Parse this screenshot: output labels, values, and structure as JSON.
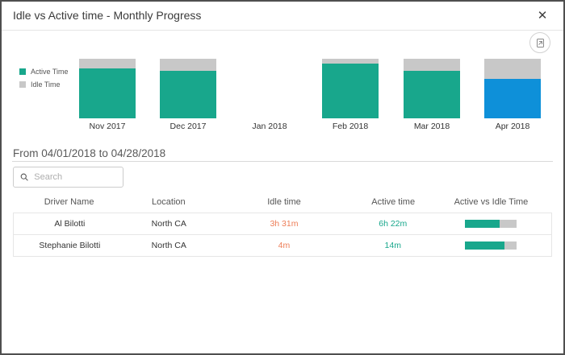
{
  "window": {
    "title": "Idle vs Active time - Monthly Progress",
    "close_glyph": "✕"
  },
  "colors": {
    "active": "#18a78c",
    "idle": "#c8c8c8",
    "highlight_blue": "#0e90d9",
    "idle_value_text": "#ed7d57",
    "active_value_text": "#18a78c"
  },
  "chart_data": {
    "type": "bar",
    "stacked": true,
    "unit": "percent of month bar",
    "categories": [
      "Nov 2017",
      "Dec 2017",
      "Jan 2018",
      "Feb 2018",
      "Mar 2018",
      "Apr 2018"
    ],
    "series": [
      {
        "name": "Active Time",
        "color": "#18a78c",
        "values_pct": [
          84,
          80,
          0,
          92,
          80,
          66
        ]
      },
      {
        "name": "Idle Time",
        "color": "#c8c8c8",
        "values_pct": [
          16,
          20,
          0,
          8,
          20,
          34
        ]
      }
    ],
    "highlighted_category": "Apr 2018",
    "highlight_color": "#0e90d9",
    "legend_position": "left",
    "title": "Idle vs Active time - Monthly Progress"
  },
  "filter": {
    "date_range": "From 04/01/2018 to 04/28/2018"
  },
  "search": {
    "placeholder": "Search",
    "value": ""
  },
  "table": {
    "columns": [
      "Driver Name",
      "Location",
      "Idle time",
      "Active time",
      "Active vs Idle Time"
    ],
    "rows": [
      {
        "driver": "Al Bilotti",
        "location": "North CA",
        "idle": "3h 31m",
        "active": "6h 22m",
        "active_pct": 67
      },
      {
        "driver": "Stephanie Bilotti",
        "location": "North CA",
        "idle": "4m",
        "active": "14m",
        "active_pct": 77
      }
    ]
  }
}
